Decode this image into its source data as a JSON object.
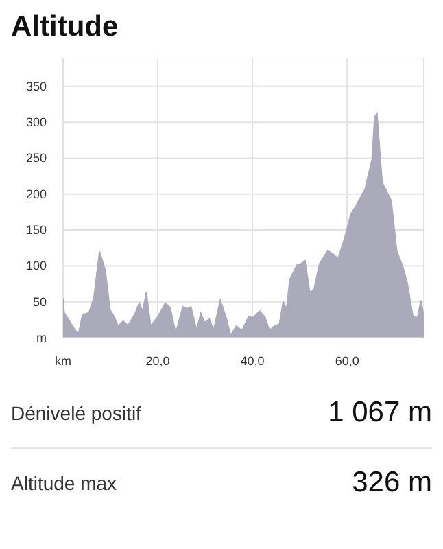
{
  "chart_data": {
    "type": "area",
    "title": "Altitude",
    "color": "#abaabb",
    "x": [
      0,
      0.2,
      2.6,
      3.3,
      4.1,
      5.5,
      6.5,
      7.7,
      8.9,
      9.9,
      10.8,
      11.6,
      12.7,
      13.7,
      15.1,
      16.1,
      16.8,
      17.6,
      18.5,
      20.0,
      21.6,
      22.6,
      23.8,
      25.3,
      26.2,
      27.0,
      28.2,
      29.1,
      29.9,
      30.9,
      31.8,
      33.2,
      34.4,
      35.4,
      36.6,
      37.8,
      39.2,
      40.2,
      41.5,
      42.6,
      43.6,
      44.6,
      45.7,
      46.5,
      47.2,
      47.9,
      49.4,
      50.3,
      51.1,
      52.1,
      53.0,
      54.2,
      55.9,
      57.1,
      58.1,
      59.5,
      60.8,
      61.9,
      63.8,
      65.3,
      65.8,
      66.3,
      67.4,
      68.4,
      69.3,
      70.5,
      71.7,
      72.7,
      73.9,
      74.9,
      75.6,
      76.2
    ],
    "values": [
      55,
      35,
      10,
      6,
      32,
      35,
      55,
      120,
      94,
      39,
      29,
      16,
      23,
      17,
      32,
      48,
      36,
      63,
      16,
      29,
      48,
      42,
      6,
      43,
      40,
      43,
      10,
      34,
      21,
      26,
      10,
      52,
      29,
      3,
      16,
      10,
      29,
      28,
      37,
      29,
      10,
      16,
      19,
      50,
      39,
      81,
      101,
      103,
      107,
      63,
      67,
      103,
      121,
      116,
      110,
      139,
      172,
      184,
      207,
      249,
      307,
      312,
      216,
      203,
      191,
      120,
      100,
      76,
      29,
      28,
      52,
      29
    ],
    "xlim": [
      0,
      76.2
    ],
    "ylim": [
      0,
      390
    ],
    "xticks": [
      {
        "value": 0,
        "label": "km"
      },
      {
        "value": 20,
        "label": "20,0"
      },
      {
        "value": 40,
        "label": "40,0"
      },
      {
        "value": 60,
        "label": "60,0"
      }
    ],
    "yticks": [
      {
        "value": 0,
        "label": "m"
      },
      50,
      100,
      150,
      200,
      250,
      300,
      350
    ],
    "grid": true,
    "annotations": [
      "Dénivelé positif",
      "1 067 m",
      "Altitude max",
      "326 m"
    ]
  }
}
